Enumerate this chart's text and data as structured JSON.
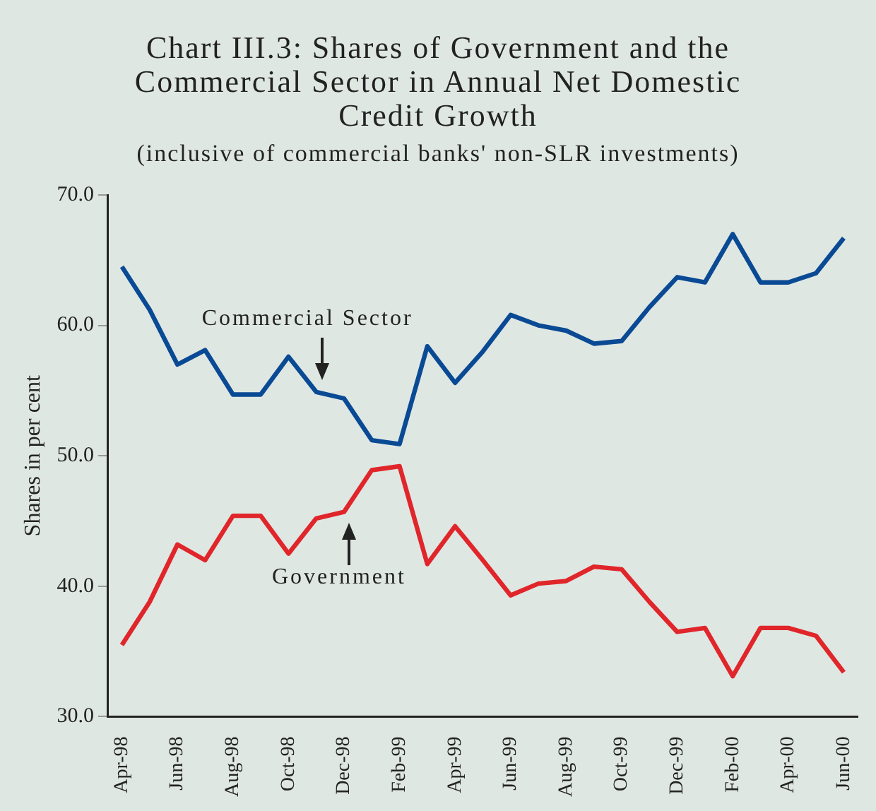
{
  "chart_data": {
    "type": "line",
    "title": "Chart III.3: Shares of Government and the Commercial Sector in Annual Net Domestic Credit Growth",
    "subtitle": "(inclusive of commercial banks' non-SLR investments)",
    "ylabel": "Shares in per cent",
    "categories": [
      "Apr-98",
      null,
      "Jun-98",
      null,
      "Aug-98",
      null,
      "Oct-98",
      null,
      "Dec-98",
      null,
      "Feb-99",
      null,
      "Apr-99",
      null,
      "Jun-99",
      null,
      "Aug-99",
      null,
      "Oct-99",
      null,
      "Dec-99",
      null,
      "Feb-00",
      null,
      "Apr-00",
      null,
      "Jun-00"
    ],
    "series": [
      {
        "name": "Commercial Sector",
        "color": "#0a4a94",
        "values": [
          64.5,
          61.2,
          57.0,
          58.1,
          54.7,
          54.7,
          57.6,
          54.9,
          54.4,
          51.2,
          50.9,
          58.4,
          55.6,
          58.0,
          60.8,
          60.0,
          59.6,
          58.6,
          58.8,
          61.4,
          63.7,
          63.3,
          67.0,
          63.3,
          63.3,
          64.0,
          66.7
        ]
      },
      {
        "name": "Government",
        "color": "#e0262a",
        "values": [
          35.5,
          38.8,
          43.2,
          42.0,
          45.4,
          45.4,
          42.5,
          45.2,
          45.7,
          48.9,
          49.2,
          41.7,
          44.6,
          42.0,
          39.3,
          40.2,
          40.4,
          41.5,
          41.3,
          38.8,
          36.5,
          36.8,
          33.1,
          36.8,
          36.8,
          36.2,
          33.4
        ]
      }
    ],
    "ylim": [
      30,
      70
    ],
    "yticks": [
      {
        "value": 30,
        "label": "30.0"
      },
      {
        "value": 40,
        "label": "40.0"
      },
      {
        "value": 50,
        "label": "50.0"
      },
      {
        "value": 60,
        "label": "60.0"
      },
      {
        "value": 70,
        "label": "70.0"
      }
    ],
    "grid": false,
    "legend": false,
    "marker": "none",
    "line_style": "solid"
  }
}
